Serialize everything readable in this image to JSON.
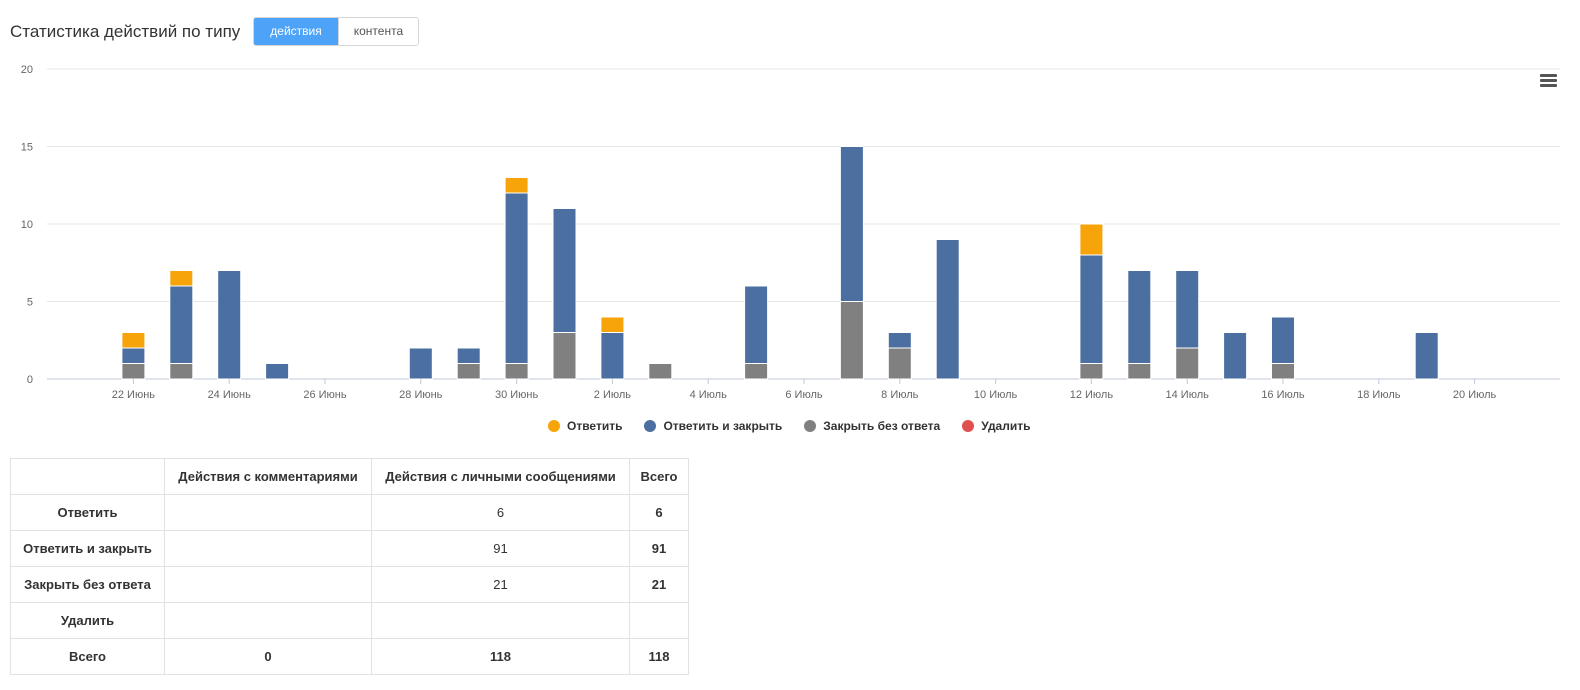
{
  "header": {
    "title": "Статистика действий по типу",
    "toggle": [
      {
        "label": "действия",
        "active": true
      },
      {
        "label": "контента",
        "active": false
      }
    ]
  },
  "colors": {
    "reply": "#f7a30a",
    "reply_close": "#4a6fa0",
    "close_no_reply": "#808080",
    "delete": "#e05050",
    "accent": "#4da3f7"
  },
  "chart_data": {
    "type": "bar",
    "stacked": true,
    "ylim": [
      0,
      20
    ],
    "yticks": [
      0,
      5,
      10,
      15,
      20
    ],
    "categories": [
      "21 Июнь",
      "22 Июнь",
      "23 Июнь",
      "24 Июнь",
      "25 Июнь",
      "26 Июнь",
      "27 Июнь",
      "28 Июнь",
      "29 Июнь",
      "30 Июнь",
      "1 Июль",
      "2 Июль",
      "3 Июль",
      "4 Июль",
      "5 Июль",
      "6 Июль",
      "7 Июль",
      "8 Июль",
      "9 Июль",
      "10 Июль",
      "11 Июль",
      "12 Июль",
      "13 Июль",
      "14 Июль",
      "15 Июль",
      "16 Июль",
      "17 Июль",
      "18 Июль",
      "19 Июль",
      "20 Июль"
    ],
    "xtick_labels": [
      "22 Июнь",
      "24 Июнь",
      "26 Июнь",
      "28 Июнь",
      "30 Июнь",
      "2 Июль",
      "4 Июль",
      "6 Июль",
      "8 Июль",
      "10 Июль",
      "12 Июль",
      "14 Июль",
      "16 Июль",
      "18 Июль",
      "20 Июль"
    ],
    "series": [
      {
        "name": "Закрыть без ответа",
        "color": "#808080",
        "values": [
          0,
          1,
          1,
          0,
          0,
          0,
          0,
          0,
          1,
          1,
          3,
          0,
          1,
          0,
          1,
          0,
          5,
          2,
          0,
          0,
          0,
          1,
          1,
          2,
          0,
          1,
          0,
          0,
          0,
          0
        ]
      },
      {
        "name": "Ответить и закрыть",
        "color": "#4a6fa0",
        "values": [
          0,
          1,
          5,
          7,
          1,
          0,
          0,
          2,
          1,
          11,
          8,
          3,
          0,
          0,
          5,
          0,
          10,
          1,
          9,
          0,
          0,
          7,
          6,
          5,
          3,
          3,
          0,
          0,
          3,
          0
        ]
      },
      {
        "name": "Ответить",
        "color": "#f7a30a",
        "values": [
          0,
          1,
          1,
          0,
          0,
          0,
          0,
          0,
          0,
          1,
          0,
          1,
          0,
          0,
          0,
          0,
          0,
          0,
          0,
          0,
          0,
          2,
          0,
          0,
          0,
          0,
          0,
          0,
          0,
          0
        ]
      },
      {
        "name": "Удалить",
        "color": "#e05050",
        "values": [
          0,
          0,
          0,
          0,
          0,
          0,
          0,
          0,
          0,
          0,
          0,
          0,
          0,
          0,
          0,
          0,
          0,
          0,
          0,
          0,
          0,
          0,
          0,
          0,
          0,
          0,
          0,
          0,
          0,
          0
        ]
      }
    ],
    "legend_position": "bottom",
    "grid": true
  },
  "legend": [
    {
      "label": "Ответить",
      "color": "#f7a30a"
    },
    {
      "label": "Ответить и закрыть",
      "color": "#4a6fa0"
    },
    {
      "label": "Закрыть без ответа",
      "color": "#808080"
    },
    {
      "label": "Удалить",
      "color": "#e05050"
    }
  ],
  "table": {
    "headers": [
      "",
      "Действия с комментариями",
      "Действия с личными сообщениями",
      "Всего"
    ],
    "rows": [
      {
        "label": "Ответить",
        "comments": "",
        "messages": "6",
        "total": "6"
      },
      {
        "label": "Ответить и закрыть",
        "comments": "",
        "messages": "91",
        "total": "91"
      },
      {
        "label": "Закрыть без ответа",
        "comments": "",
        "messages": "21",
        "total": "21"
      },
      {
        "label": "Удалить",
        "comments": "",
        "messages": "",
        "total": ""
      },
      {
        "label": "Всего",
        "comments": "0",
        "messages": "118",
        "total": "118"
      }
    ]
  }
}
